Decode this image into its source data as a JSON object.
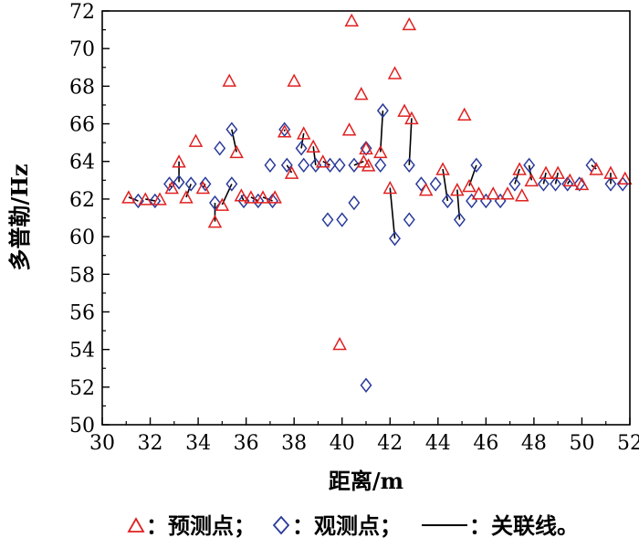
{
  "chart_data": {
    "type": "scatter",
    "xlabel": "距离/m",
    "ylabel": "多普勒/Hz",
    "xlim": [
      30,
      52
    ],
    "ylim": [
      50,
      72
    ],
    "xticks": [
      30,
      32,
      34,
      36,
      38,
      40,
      42,
      44,
      46,
      48,
      50,
      52
    ],
    "yticks": [
      50,
      52,
      54,
      56,
      58,
      60,
      62,
      64,
      66,
      68,
      70,
      72
    ],
    "grid": false,
    "legend": {
      "position": "bottom",
      "predicted": "：预测点；",
      "observed": "：观测点；",
      "line": "：关联线。"
    },
    "colors": {
      "predicted": "#e02020",
      "observed": "#2a3a9a",
      "line": "#000000"
    },
    "series": [
      {
        "role": "predicted",
        "marker": "triangle",
        "points": [
          [
            31.1,
            62.1
          ],
          [
            31.8,
            62.0
          ],
          [
            32.4,
            62.0
          ],
          [
            32.9,
            62.6
          ],
          [
            33.2,
            64.0
          ],
          [
            33.5,
            62.1
          ],
          [
            33.9,
            65.1
          ],
          [
            34.2,
            62.6
          ],
          [
            34.7,
            60.8
          ],
          [
            35.0,
            61.7
          ],
          [
            35.3,
            68.3
          ],
          [
            35.6,
            64.5
          ],
          [
            35.8,
            62.2
          ],
          [
            36.2,
            62.1
          ],
          [
            36.7,
            62.1
          ],
          [
            37.2,
            62.1
          ],
          [
            37.6,
            65.6
          ],
          [
            37.9,
            63.4
          ],
          [
            38.0,
            68.3
          ],
          [
            38.4,
            65.5
          ],
          [
            38.8,
            64.8
          ],
          [
            39.2,
            64.0
          ],
          [
            39.9,
            54.3
          ],
          [
            40.3,
            65.7
          ],
          [
            40.4,
            71.5
          ],
          [
            40.8,
            67.6
          ],
          [
            40.9,
            64.0
          ],
          [
            41.0,
            64.7
          ],
          [
            41.1,
            63.8
          ],
          [
            41.6,
            64.5
          ],
          [
            42.0,
            62.6
          ],
          [
            42.2,
            68.7
          ],
          [
            42.6,
            66.7
          ],
          [
            42.8,
            71.3
          ],
          [
            42.9,
            66.3
          ],
          [
            43.5,
            62.5
          ],
          [
            44.2,
            63.6
          ],
          [
            44.8,
            62.5
          ],
          [
            45.1,
            66.5
          ],
          [
            45.3,
            62.7
          ],
          [
            45.7,
            62.3
          ],
          [
            46.3,
            62.3
          ],
          [
            46.9,
            62.3
          ],
          [
            47.4,
            63.6
          ],
          [
            47.5,
            62.2
          ],
          [
            47.9,
            63.0
          ],
          [
            48.5,
            63.4
          ],
          [
            49.0,
            63.4
          ],
          [
            49.5,
            63.0
          ],
          [
            50.0,
            62.8
          ],
          [
            50.6,
            63.6
          ],
          [
            51.2,
            63.4
          ],
          [
            51.8,
            63.1
          ]
        ]
      },
      {
        "role": "observed",
        "marker": "diamond",
        "points": [
          [
            31.5,
            61.9
          ],
          [
            32.2,
            61.9
          ],
          [
            32.8,
            62.8
          ],
          [
            33.2,
            62.9
          ],
          [
            33.7,
            62.8
          ],
          [
            34.3,
            62.8
          ],
          [
            34.7,
            61.8
          ],
          [
            34.9,
            64.7
          ],
          [
            35.4,
            65.7
          ],
          [
            35.4,
            62.8
          ],
          [
            35.9,
            61.9
          ],
          [
            36.5,
            61.9
          ],
          [
            37.0,
            63.8
          ],
          [
            37.1,
            61.9
          ],
          [
            37.6,
            65.7
          ],
          [
            37.7,
            63.8
          ],
          [
            38.3,
            64.7
          ],
          [
            38.4,
            63.8
          ],
          [
            38.9,
            63.8
          ],
          [
            39.4,
            60.9
          ],
          [
            39.5,
            63.8
          ],
          [
            39.9,
            63.8
          ],
          [
            40.0,
            60.9
          ],
          [
            40.5,
            61.8
          ],
          [
            40.5,
            63.8
          ],
          [
            41.0,
            52.1
          ],
          [
            41.0,
            64.7
          ],
          [
            41.6,
            63.8
          ],
          [
            41.7,
            66.7
          ],
          [
            42.2,
            59.9
          ],
          [
            42.8,
            63.8
          ],
          [
            42.8,
            60.9
          ],
          [
            43.3,
            62.8
          ],
          [
            43.9,
            62.8
          ],
          [
            44.4,
            61.9
          ],
          [
            44.9,
            60.9
          ],
          [
            45.4,
            61.9
          ],
          [
            45.6,
            63.8
          ],
          [
            46.0,
            61.9
          ],
          [
            46.6,
            61.9
          ],
          [
            47.2,
            62.8
          ],
          [
            47.8,
            63.8
          ],
          [
            48.4,
            62.8
          ],
          [
            48.9,
            62.8
          ],
          [
            49.4,
            62.8
          ],
          [
            49.9,
            62.8
          ],
          [
            50.4,
            63.8
          ],
          [
            51.2,
            62.8
          ],
          [
            51.7,
            62.8
          ]
        ]
      },
      {
        "role": "association",
        "marker": "line",
        "segments": [
          [
            [
              31.1,
              62.1
            ],
            [
              31.5,
              61.9
            ]
          ],
          [
            [
              31.8,
              62.0
            ],
            [
              32.2,
              61.9
            ]
          ],
          [
            [
              32.9,
              62.6
            ],
            [
              32.8,
              62.8
            ]
          ],
          [
            [
              33.2,
              64.0
            ],
            [
              33.2,
              62.9
            ]
          ],
          [
            [
              33.5,
              62.1
            ],
            [
              33.7,
              62.8
            ]
          ],
          [
            [
              34.2,
              62.6
            ],
            [
              34.3,
              62.8
            ]
          ],
          [
            [
              34.7,
              60.8
            ],
            [
              34.7,
              61.8
            ]
          ],
          [
            [
              35.0,
              61.7
            ],
            [
              35.4,
              62.8
            ]
          ],
          [
            [
              35.6,
              64.5
            ],
            [
              35.4,
              65.7
            ]
          ],
          [
            [
              35.8,
              62.2
            ],
            [
              35.9,
              61.9
            ]
          ],
          [
            [
              36.2,
              62.1
            ],
            [
              36.5,
              61.9
            ]
          ],
          [
            [
              36.7,
              62.1
            ],
            [
              37.1,
              61.9
            ]
          ],
          [
            [
              37.6,
              65.6
            ],
            [
              37.6,
              65.7
            ]
          ],
          [
            [
              37.9,
              63.4
            ],
            [
              37.7,
              63.8
            ]
          ],
          [
            [
              38.4,
              65.5
            ],
            [
              38.3,
              64.7
            ]
          ],
          [
            [
              38.8,
              64.8
            ],
            [
              38.9,
              63.8
            ]
          ],
          [
            [
              39.2,
              64.0
            ],
            [
              39.5,
              63.8
            ]
          ],
          [
            [
              40.9,
              64.0
            ],
            [
              40.5,
              63.8
            ]
          ],
          [
            [
              41.0,
              64.7
            ],
            [
              41.0,
              64.7
            ]
          ],
          [
            [
              41.6,
              64.5
            ],
            [
              41.7,
              66.7
            ]
          ],
          [
            [
              42.0,
              62.6
            ],
            [
              42.2,
              59.9
            ]
          ],
          [
            [
              42.9,
              66.3
            ],
            [
              42.8,
              63.8
            ]
          ],
          [
            [
              44.2,
              63.6
            ],
            [
              44.4,
              61.9
            ]
          ],
          [
            [
              44.8,
              62.5
            ],
            [
              44.9,
              60.9
            ]
          ],
          [
            [
              45.3,
              62.7
            ],
            [
              45.6,
              63.8
            ]
          ],
          [
            [
              47.4,
              63.6
            ],
            [
              47.2,
              62.8
            ]
          ],
          [
            [
              47.9,
              63.0
            ],
            [
              47.8,
              63.8
            ]
          ],
          [
            [
              48.5,
              63.4
            ],
            [
              48.4,
              62.8
            ]
          ],
          [
            [
              49.0,
              63.4
            ],
            [
              48.9,
              62.8
            ]
          ],
          [
            [
              49.5,
              63.0
            ],
            [
              49.4,
              62.8
            ]
          ],
          [
            [
              50.6,
              63.6
            ],
            [
              50.4,
              63.8
            ]
          ],
          [
            [
              51.2,
              63.4
            ],
            [
              51.2,
              62.8
            ]
          ]
        ]
      }
    ]
  }
}
